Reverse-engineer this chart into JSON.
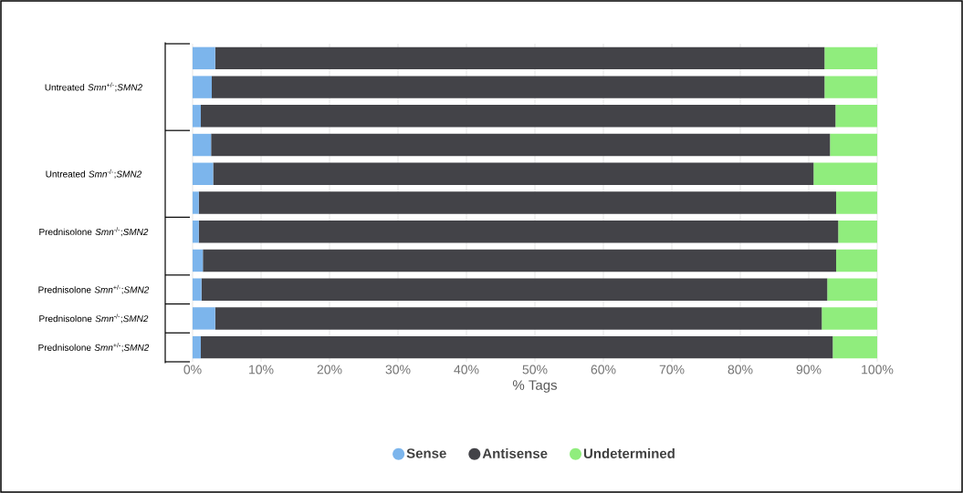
{
  "chart_data": {
    "type": "bar",
    "orientation": "horizontal",
    "stacked": true,
    "xlabel": "% Tags",
    "categories": [
      null,
      "Untreated *Smn*$^{+/-}$;*SMN2*",
      null,
      null,
      "Untreated *Smn*$^{-/-}$;*SMN2*",
      null,
      "Prednisolone *Smn*$^{-/-}$;*SMN2*",
      null,
      "Prednisolone *Smn*$^{+/-}$;*SMN2*",
      "Prednisolone *Smn*$^{-/-}$;*SMN2*",
      "Prednisolone *Smn*$^{+/-}$;*SMN2*"
    ],
    "series": [
      {
        "name": "Sense",
        "color": "#7cb5ec",
        "values": [
          3.3,
          2.8,
          1.2,
          2.7,
          3.0,
          0.9,
          0.9,
          1.5,
          1.3,
          3.3,
          1.2
        ]
      },
      {
        "name": "Antisense",
        "color": "#434348",
        "values": [
          89.0,
          89.5,
          92.7,
          90.4,
          87.7,
          93.1,
          93.4,
          92.5,
          91.4,
          88.6,
          92.3
        ]
      },
      {
        "name": "Undetermined",
        "color": "#90ed7d",
        "values": [
          7.7,
          7.7,
          6.1,
          6.9,
          9.3,
          6.0,
          5.7,
          6.0,
          7.3,
          8.1,
          6.5
        ]
      }
    ],
    "xlim": [
      0,
      100
    ],
    "xticks": [
      {
        "value": 0,
        "label": "0%"
      },
      {
        "value": 10,
        "label": "10%"
      },
      {
        "value": 20,
        "label": "20%"
      },
      {
        "value": 30,
        "label": "30%"
      },
      {
        "value": 40,
        "label": "40%"
      },
      {
        "value": 50,
        "label": "50%"
      },
      {
        "value": 60,
        "label": "60%"
      },
      {
        "value": 70,
        "label": "70%"
      },
      {
        "value": 80,
        "label": "80%"
      },
      {
        "value": 90,
        "label": "90%"
      },
      {
        "value": 100,
        "label": "100%"
      }
    ],
    "grid": "x",
    "legend": "bottom",
    "marker": "circle"
  }
}
